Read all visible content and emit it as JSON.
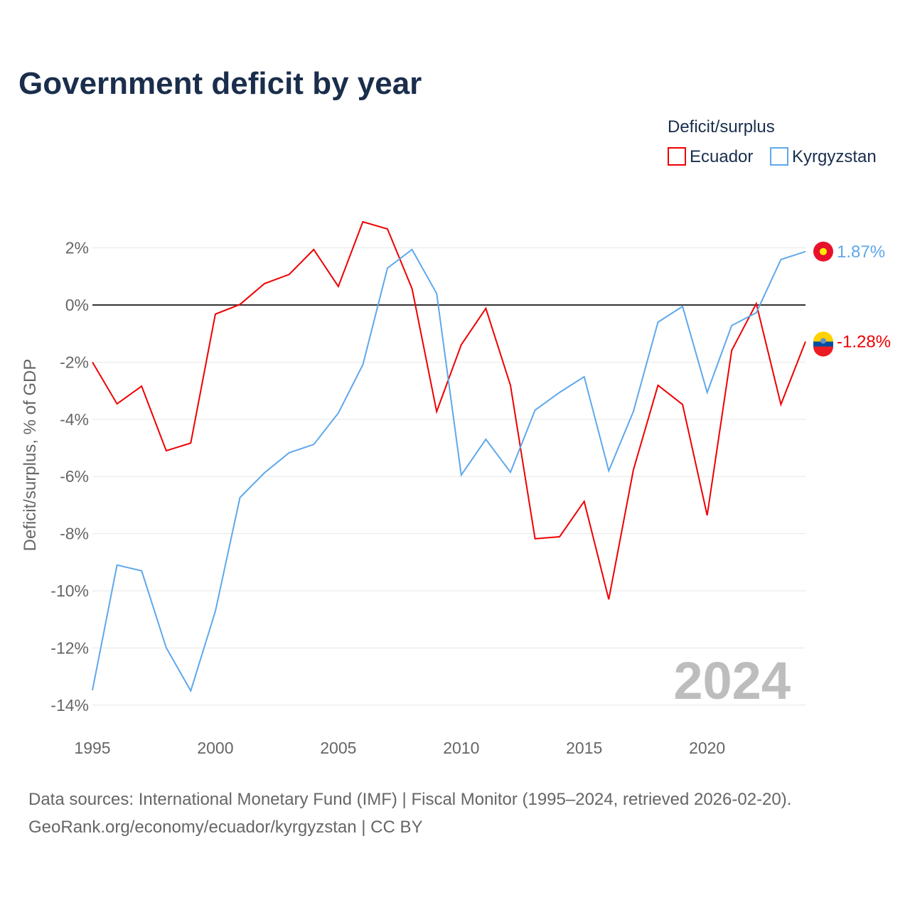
{
  "chart_data": {
    "type": "line",
    "title": "Government deficit by year",
    "ylabel": "Deficit/surplus, % of GDP",
    "xlabel": "",
    "legend_title": "Deficit/surplus",
    "legend_position": "top-right",
    "ylim": [
      -14.5,
      3.5
    ],
    "xlim": [
      1995,
      2024
    ],
    "yticks": [
      2,
      0,
      -2,
      -4,
      -6,
      -8,
      -10,
      -12,
      -14
    ],
    "ytick_labels": [
      "2%",
      "0%",
      "-2%",
      "-4%",
      "-6%",
      "-8%",
      "-10%",
      "-12%",
      "-14%"
    ],
    "xticks": [
      1995,
      2000,
      2005,
      2010,
      2015,
      2020
    ],
    "xtick_labels": [
      "1995",
      "2000",
      "2005",
      "2010",
      "2015",
      "2020"
    ],
    "grid": true,
    "watermark_year": "2024",
    "x": [
      1995,
      1996,
      1997,
      1998,
      1999,
      2000,
      2001,
      2002,
      2003,
      2004,
      2005,
      2006,
      2007,
      2008,
      2009,
      2010,
      2011,
      2012,
      2013,
      2014,
      2015,
      2016,
      2017,
      2018,
      2019,
      2020,
      2021,
      2022,
      2023,
      2024
    ],
    "series": [
      {
        "name": "Ecuador",
        "color": "#ee0000",
        "end_label": "-1.28%",
        "values": [
          -2.0,
          -3.46,
          -2.84,
          -5.1,
          -4.83,
          -0.32,
          0.02,
          0.75,
          1.07,
          1.94,
          0.65,
          2.91,
          2.66,
          0.57,
          -3.73,
          -1.39,
          -0.12,
          -2.81,
          -8.18,
          -8.11,
          -6.87,
          -10.3,
          -5.77,
          -2.81,
          -3.48,
          -7.36,
          -1.59,
          0.05,
          -3.48,
          -1.28
        ]
      },
      {
        "name": "Kyrgyzstan",
        "color": "#5ea8ec",
        "end_label": "1.87%",
        "values": [
          -13.48,
          -9.1,
          -9.3,
          -11.99,
          -13.5,
          -10.72,
          -6.74,
          -5.87,
          -5.17,
          -4.88,
          -3.78,
          -2.09,
          1.29,
          1.94,
          0.4,
          -5.95,
          -4.7,
          -5.85,
          -3.68,
          -3.06,
          -2.51,
          -5.8,
          -3.73,
          -0.6,
          -0.05,
          -3.06,
          -0.72,
          -0.27,
          1.59,
          1.87
        ]
      }
    ]
  },
  "footer": {
    "line1": "Data sources: International Monetary Fund (IMF) | Fiscal Monitor (1995–2024, retrieved 2026-02-20).",
    "line2": "GeoRank.org/economy/ecuador/kyrgyzstan | CC BY"
  }
}
